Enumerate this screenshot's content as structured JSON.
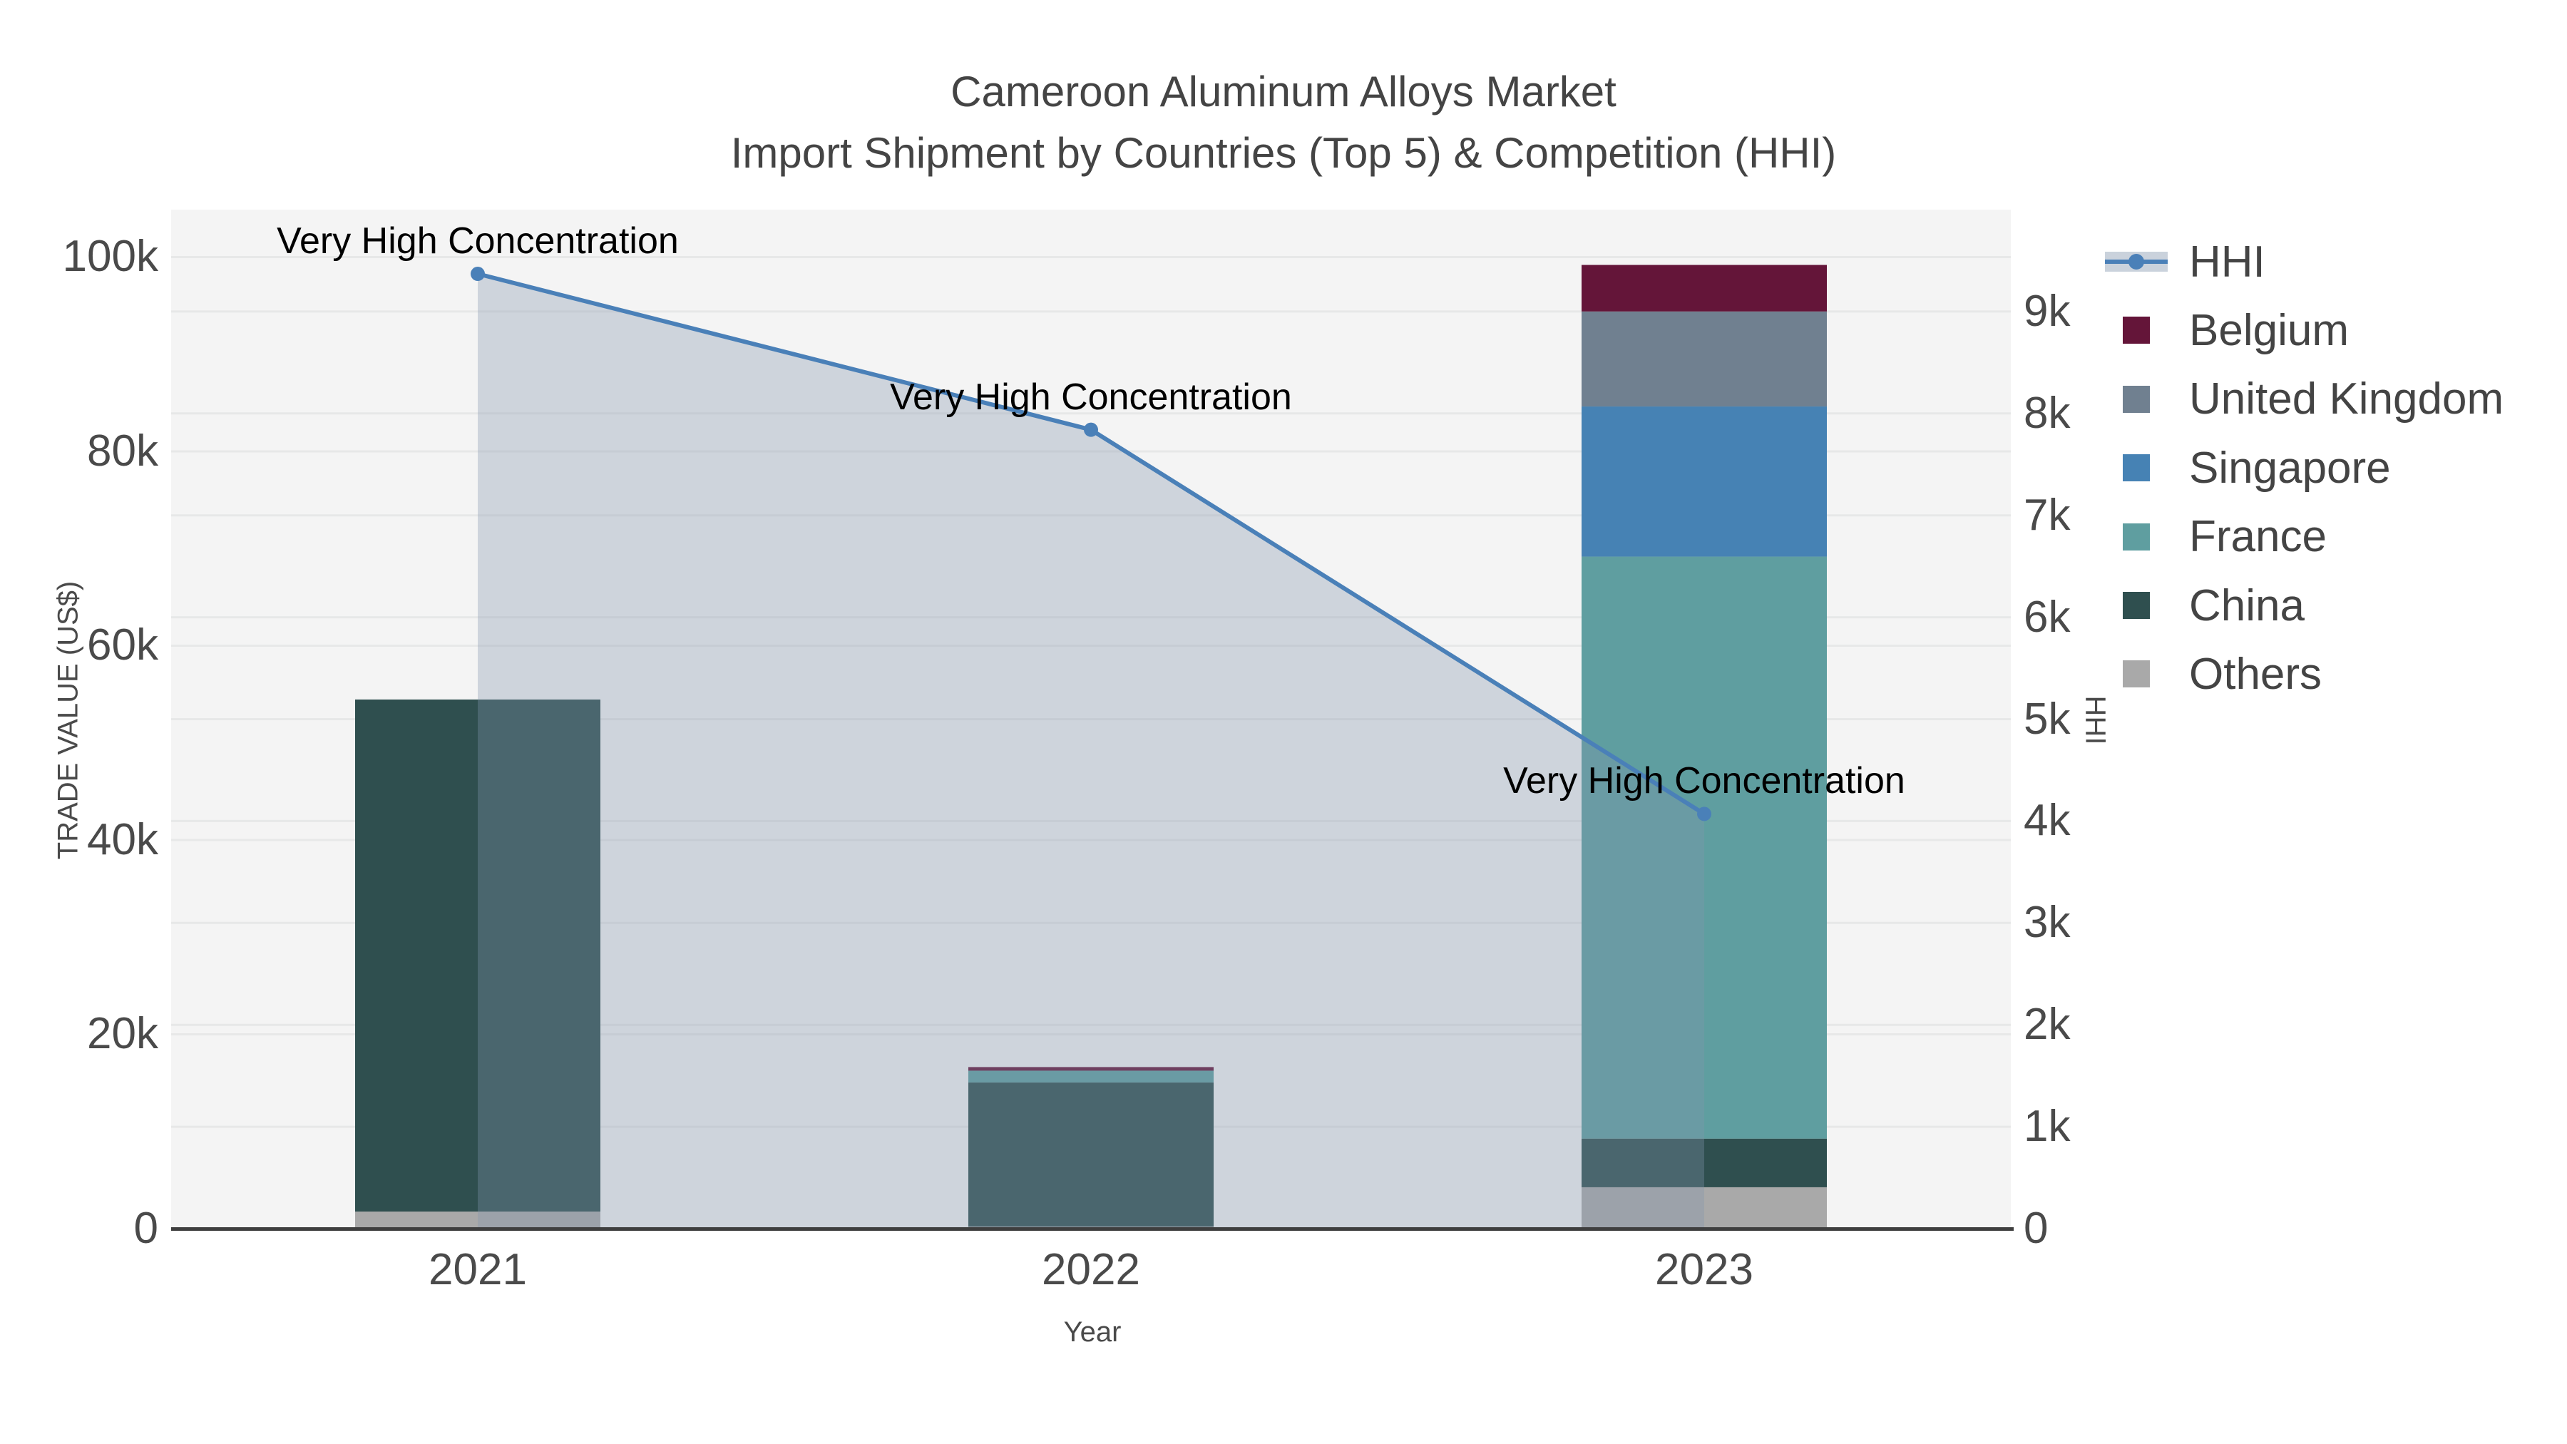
{
  "title": {
    "line1": "Cameroon Aluminum Alloys Market",
    "line2": "Import Shipment by Countries (Top 5) & Competition (HHI)"
  },
  "axes": {
    "x": {
      "title": "Year",
      "categories": [
        "2021",
        "2022",
        "2023"
      ]
    },
    "y_left": {
      "title": "TRADE VALUE (US$)",
      "tick_labels": [
        "0",
        "20k",
        "40k",
        "60k",
        "80k",
        "100k"
      ],
      "tick_values": [
        0,
        20000,
        40000,
        60000,
        80000,
        100000
      ],
      "range": [
        0,
        104880
      ]
    },
    "y_right": {
      "title": "HHI",
      "tick_labels": [
        "0",
        "1k",
        "2k",
        "3k",
        "4k",
        "5k",
        "6k",
        "7k",
        "8k",
        "9k"
      ],
      "tick_values": [
        0,
        1000,
        2000,
        3000,
        4000,
        5000,
        6000,
        7000,
        8000,
        9000
      ],
      "range": [
        0,
        10000
      ]
    }
  },
  "legend": {
    "items": [
      {
        "label": "HHI",
        "type": "line",
        "color": "#4A80B8",
        "band_color": "#CAD2DC"
      },
      {
        "label": "Belgium",
        "type": "square",
        "color": "#641539"
      },
      {
        "label": "United Kingdom",
        "type": "square",
        "color": "#708090"
      },
      {
        "label": "Singapore",
        "type": "square",
        "color": "#4682B4"
      },
      {
        "label": "France",
        "type": "square",
        "color": "#5F9EA0"
      },
      {
        "label": "China",
        "type": "square",
        "color": "#2F4F4F"
      },
      {
        "label": "Others",
        "type": "square",
        "color": "#A9A9A9"
      }
    ]
  },
  "chart_data": {
    "type": "bar+line",
    "description": "Stacked bars = import trade value (US$, left axis); line = HHI competition index (right axis)",
    "categories": [
      "2021",
      "2022",
      "2023"
    ],
    "bar_series": [
      {
        "name": "Others",
        "color": "#A9A9A9",
        "values": [
          1760,
          220,
          4260
        ]
      },
      {
        "name": "China",
        "color": "#2F4F4F",
        "values": [
          52700,
          14820,
          5010
        ]
      },
      {
        "name": "France",
        "color": "#5F9EA0",
        "values": [
          0,
          1220,
          59900
        ]
      },
      {
        "name": "Singapore",
        "color": "#4682B4",
        "values": [
          0,
          0,
          15450
        ]
      },
      {
        "name": "United Kingdom",
        "color": "#708090",
        "values": [
          0,
          0,
          9780
        ]
      },
      {
        "name": "Belgium",
        "color": "#641539",
        "values": [
          0,
          370,
          4790
        ]
      }
    ],
    "bar_totals": [
      54460,
      16630,
      99190
    ],
    "line_series": {
      "name": "HHI",
      "axis": "right",
      "color": "#4A80B8",
      "area_fill": "rgba(130,148,172,0.33)",
      "values": [
        9370,
        7840,
        4070
      ]
    },
    "annotations": [
      {
        "text": "Very High Concentration",
        "category": "2021",
        "value": 9370
      },
      {
        "text": "Very High Concentration",
        "category": "2022",
        "value": 7840
      },
      {
        "text": "Very High Concentration",
        "category": "2023",
        "value": 4070
      }
    ],
    "layout": {
      "plot_bg": "#F4F4F4",
      "grid_color": "#E7E8E8",
      "axis_line_color": "#3E3E3E",
      "legend_position": "right",
      "bar_width_fraction": 0.4,
      "grid": true
    }
  }
}
